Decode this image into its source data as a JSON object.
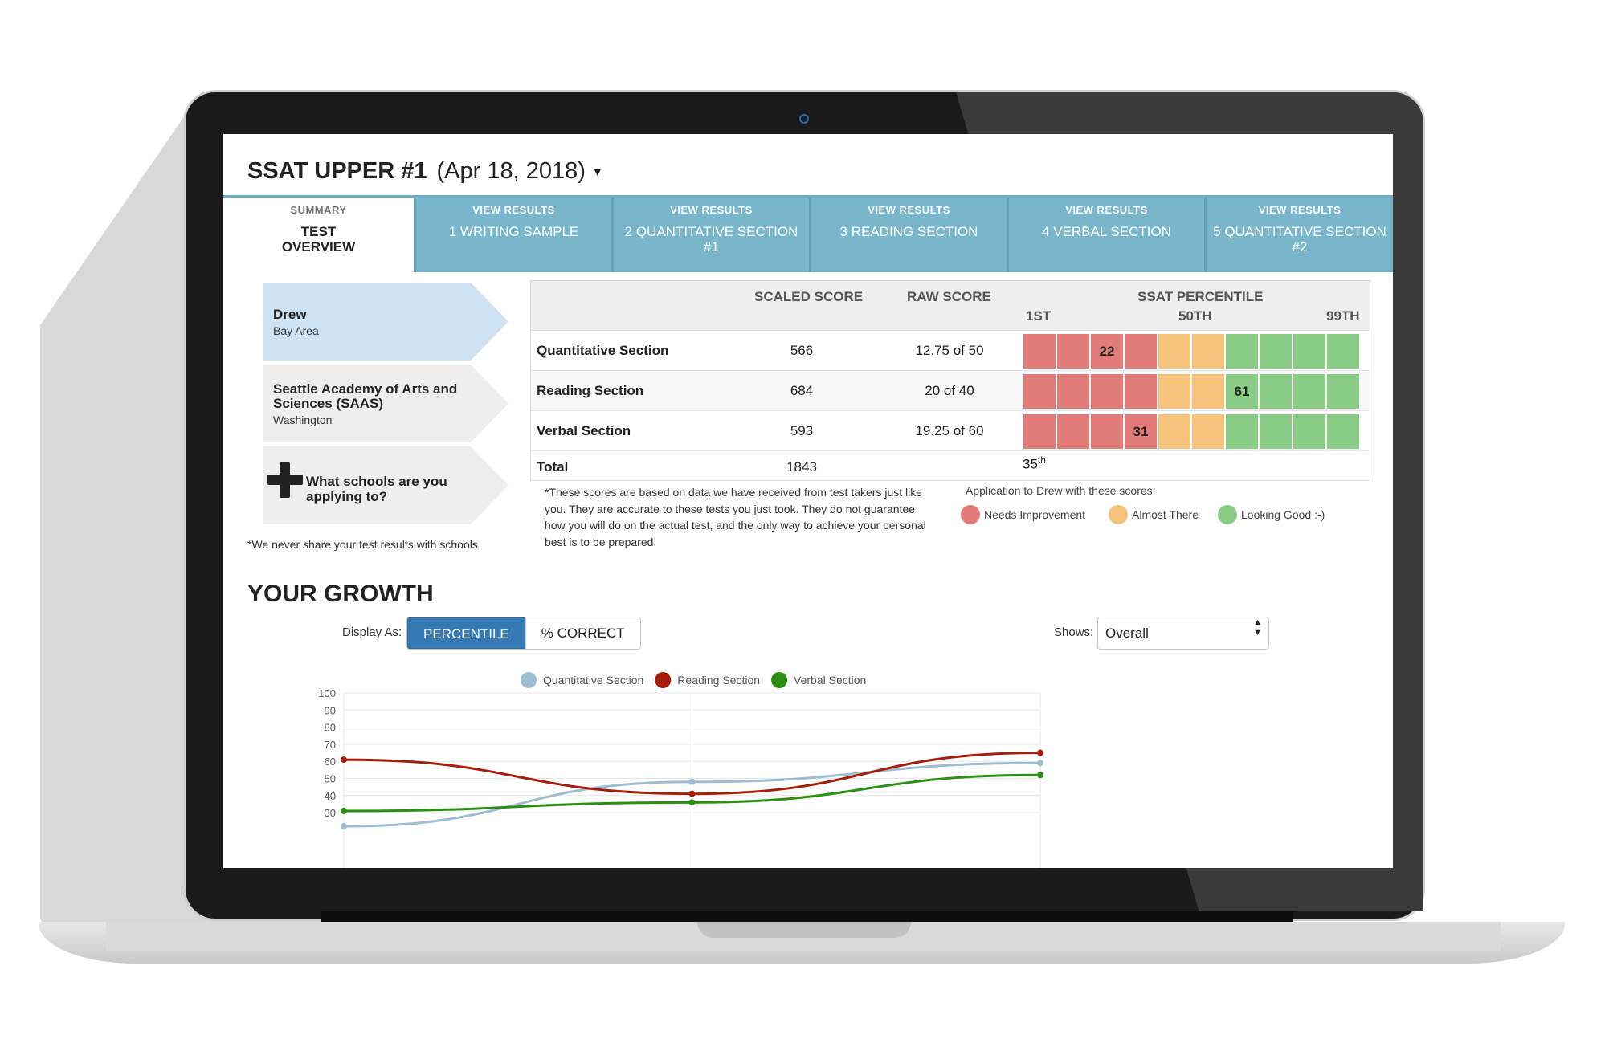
{
  "test": {
    "name": "SSAT UPPER #1",
    "date": "(Apr 18, 2018)"
  },
  "tabs": [
    {
      "small": "SUMMARY",
      "big": "TEST OVERVIEW"
    },
    {
      "small": "VIEW RESULTS",
      "big": "1 WRITING SAMPLE"
    },
    {
      "small": "VIEW RESULTS",
      "big": "2 QUANTITATIVE SECTION #1"
    },
    {
      "small": "VIEW RESULTS",
      "big": "3 READING SECTION"
    },
    {
      "small": "VIEW RESULTS",
      "big": "4 VERBAL SECTION"
    },
    {
      "small": "VIEW RESULTS",
      "big": "5 QUANTITATIVE SECTION #2"
    }
  ],
  "sidebar": {
    "student": {
      "name": "Drew",
      "location": "Bay Area"
    },
    "school": {
      "name": "Seattle Academy of Arts and Sciences (SAAS)",
      "location": "Washington"
    },
    "add_school": "What schools are you applying to?",
    "note": "*We never share your test results with schools"
  },
  "scores": {
    "headers": {
      "scaled": "SCALED SCORE",
      "raw": "RAW SCORE",
      "percentile": "SSAT PERCENTILE",
      "p1": "1ST",
      "p50": "50TH",
      "p99": "99TH"
    },
    "rows": [
      {
        "section": "Quantitative Section",
        "scaled": "566",
        "raw": "12.75 of 50",
        "percentile": "22",
        "cell": 2
      },
      {
        "section": "Reading Section",
        "scaled": "684",
        "raw": "20 of 40",
        "percentile": "61",
        "cell": 6
      },
      {
        "section": "Verbal Section",
        "scaled": "593",
        "raw": "19.25 of 60",
        "percentile": "31",
        "cell": 3
      }
    ],
    "total": {
      "label": "Total",
      "scaled": "1843",
      "percentile": "35",
      "suffix": "th"
    },
    "disclaimer": "*These scores are based on data we have received from test takers just like you. They are accurate to these tests you just took. They do not guarantee how you will do on the actual test, and the only way to achieve your personal best is to be prepared."
  },
  "legend": {
    "title": "Application to Drew with these scores:",
    "items": [
      {
        "label": "Needs Improvement",
        "color": "#e27c79"
      },
      {
        "label": "Almost There",
        "color": "#f5c37c"
      },
      {
        "label": "Looking Good :-)",
        "color": "#88cc85"
      }
    ]
  },
  "growth": {
    "title": "YOUR GROWTH",
    "display_as": "Display As:",
    "btn_percentile": "PERCENTILE",
    "btn_correct": "% CORRECT",
    "shows_label": "Shows:",
    "shows_value": "Overall"
  },
  "colors": {
    "accent": "#337ab7",
    "tab": "#79b6cc",
    "quant": "#9dbdd0",
    "reading": "#a71d0c",
    "verbal": "#2b8f12"
  },
  "chart_data": {
    "type": "line",
    "x": [
      1,
      2,
      3
    ],
    "series": [
      {
        "name": "Quantitative Section",
        "values": [
          22,
          48,
          59
        ],
        "color": "#9dbdd0"
      },
      {
        "name": "Reading Section",
        "values": [
          61,
          41,
          65
        ],
        "color": "#a71d0c"
      },
      {
        "name": "Verbal Section",
        "values": [
          31,
          36,
          52
        ],
        "color": "#2b8f12"
      }
    ],
    "yticks": [
      "100",
      "90",
      "80",
      "70",
      "60",
      "50",
      "40",
      "30"
    ],
    "ylim": [
      0,
      100
    ],
    "grid": true,
    "legend": "top-center"
  }
}
